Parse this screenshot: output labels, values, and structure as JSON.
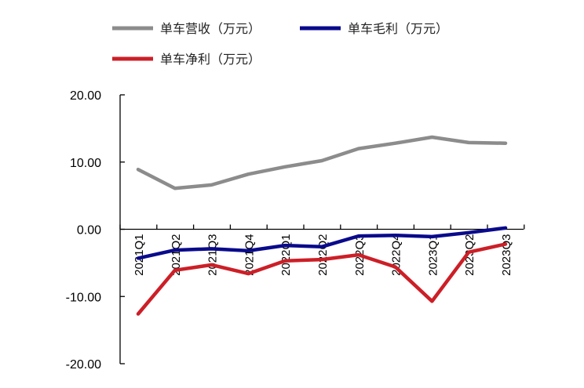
{
  "chart_data": {
    "type": "line",
    "categories": [
      "2021Q1",
      "2021Q2",
      "2021Q3",
      "2021Q4",
      "2022Q1",
      "2022Q2",
      "2022Q3",
      "2022Q4",
      "2023Q1",
      "2023Q2",
      "2023Q3"
    ],
    "series": [
      {
        "name": "单车营收（万元）",
        "color": "#8c8c8c",
        "values": [
          8.9,
          6.1,
          6.6,
          8.2,
          9.3,
          10.2,
          12.0,
          12.8,
          13.7,
          12.9,
          12.8
        ]
      },
      {
        "name": "单车毛利（万元）",
        "color": "#0a0a8c",
        "values": [
          -4.3,
          -3.1,
          -2.9,
          -3.2,
          -2.4,
          -2.6,
          -1.0,
          -0.9,
          -1.1,
          -0.5,
          0.2
        ]
      },
      {
        "name": "单车净利（万元）",
        "color": "#cc1f27",
        "values": [
          -12.6,
          -6.1,
          -5.3,
          -6.6,
          -4.7,
          -4.5,
          -3.8,
          -5.6,
          -10.7,
          -3.4,
          -2.2
        ]
      }
    ],
    "yticks": [
      "20.00",
      "10.00",
      "0.00",
      "-10.00",
      "-20.00"
    ],
    "ylim": [
      -20,
      20
    ],
    "title": "",
    "xlabel": "",
    "ylabel": ""
  }
}
